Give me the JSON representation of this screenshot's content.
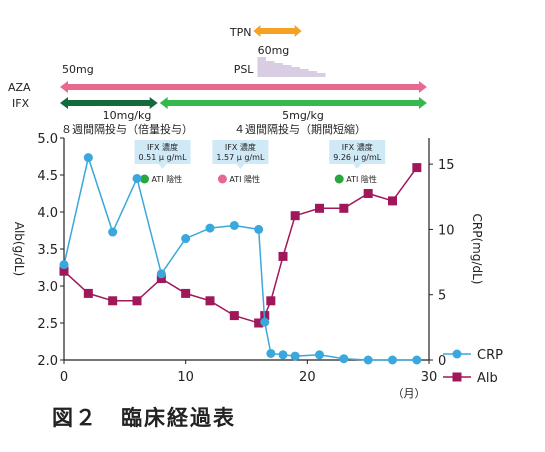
{
  "caption": "図２　臨床経過表",
  "chart_data": {
    "type": "line",
    "x": [
      0,
      2,
      4,
      6,
      8,
      10,
      12,
      14,
      16,
      16.5,
      17,
      18,
      19,
      21,
      23,
      25,
      27,
      29
    ],
    "series": [
      {
        "name": "CRP",
        "axis": "right",
        "color": "#3aa8dc",
        "marker": "circle",
        "x": [
          0,
          2,
          4,
          6,
          8,
          10,
          12,
          14,
          16,
          16.5,
          17,
          18,
          19,
          21,
          23,
          25,
          27,
          29
        ],
        "values": [
          7.3,
          15.5,
          9.8,
          13.9,
          6.6,
          9.3,
          10.1,
          10.3,
          10.0,
          2.9,
          0.5,
          0.4,
          0.3,
          0.4,
          0.1,
          0.0,
          0.0,
          0.0
        ]
      },
      {
        "name": "Alb",
        "axis": "left",
        "color": "#a0175a",
        "marker": "square",
        "x": [
          0,
          2,
          4,
          6,
          8,
          10,
          12,
          14,
          16,
          16.5,
          17,
          18,
          19,
          21,
          23,
          25,
          27,
          29
        ],
        "values": [
          3.2,
          2.9,
          2.8,
          2.8,
          3.1,
          2.9,
          2.8,
          2.6,
          2.5,
          2.6,
          2.8,
          3.4,
          3.95,
          4.05,
          4.05,
          4.25,
          4.15,
          4.6
        ]
      }
    ],
    "xlim": [
      0,
      30
    ],
    "ylim": [
      2.0,
      5.0
    ],
    "y2lim": [
      0,
      17
    ],
    "xticks": [
      "0",
      "10",
      "20",
      "30"
    ],
    "xticks_values": [
      0,
      10,
      20,
      30
    ],
    "yticks": [
      "2.0",
      "2.5",
      "3.0",
      "3.5",
      "4.0",
      "4.5",
      "5.0"
    ],
    "y2ticks": [
      "0",
      "5",
      "10",
      "15"
    ],
    "x_unit": "（月）",
    "ylabel": "Alb(g/dL)",
    "y2label": "CRP(mg/dL)",
    "legend": [
      "CRP",
      "Alb"
    ],
    "legend_position": "bottom-right",
    "grid": false,
    "treatments": {
      "tpn": {
        "label": "TPN",
        "start": 15.9,
        "end": 19.2,
        "color": "#f3a222"
      },
      "psl": {
        "label": "PSL",
        "dose": "60mg",
        "start": 15.9,
        "end": 21.5,
        "color": "#d8cde2"
      },
      "aza": {
        "label": "AZA",
        "dose": "50mg",
        "start": 0,
        "end": 29.5,
        "color": "#e8698f"
      },
      "ifx": {
        "label": "IFX",
        "phase1_dose": "10mg/kg",
        "phase1_note": "８週間隔投与（倍量投与）",
        "phase1_start": 0,
        "phase1_end": 7.7,
        "phase1_color": "#136a3d",
        "phase2_dose": "5mg/kg",
        "phase2_note": "４週間隔投与（期間短縮）",
        "phase2_start": 7.7,
        "phase2_end": 29.5,
        "phase2_color": "#35b94d"
      }
    },
    "annotations": [
      {
        "line1": "IFX 濃度",
        "line2": "0.51 µ g/mL",
        "ati": "ATI 陰性",
        "ati_color": "#2aa640",
        "x": 8.1
      },
      {
        "line1": "IFX 濃度",
        "line2": "1.57 µ g/mL",
        "ati": "ATI 陽性",
        "ati_color": "#e8698f",
        "x": 14.5
      },
      {
        "line1": "IFX 濃度",
        "line2": "9.26 µ g/mL",
        "ati": "ATI 陰性",
        "ati_color": "#2aa640",
        "x": 24.1
      }
    ]
  }
}
